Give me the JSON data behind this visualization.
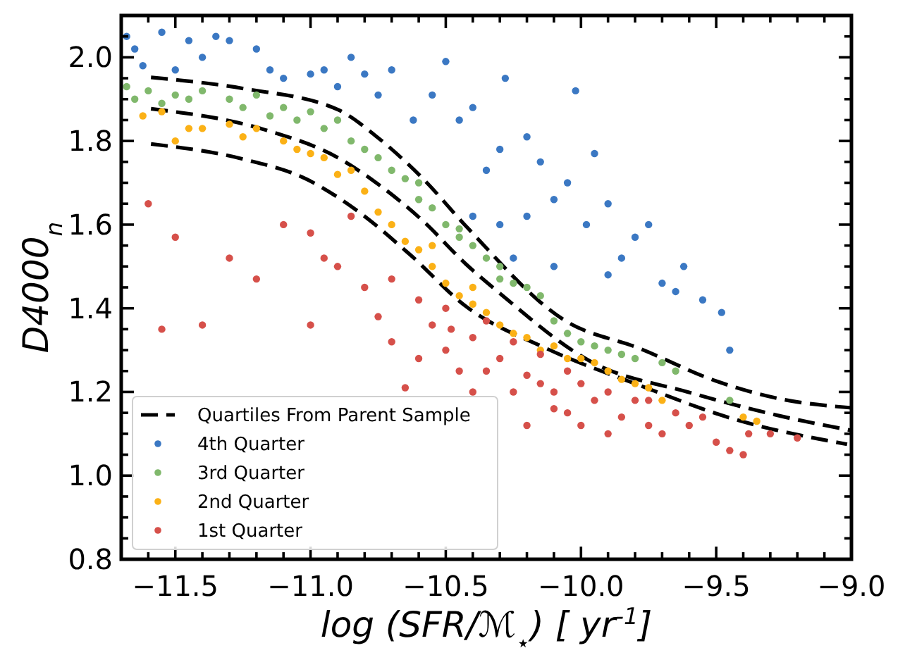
{
  "chart_data": {
    "type": "scatter",
    "xlabel": "log (SFR/ℳ$_{⋆}$)  [ yr$^{-1}$]",
    "ylabel": "D4000$_{n}$",
    "xlim": [
      -11.7,
      -9.0
    ],
    "ylim": [
      0.8,
      2.1
    ],
    "xticks": [
      {
        "value": -11.6,
        "label": null
      },
      {
        "value": -11.5,
        "label": "−11.5"
      },
      {
        "value": -11.4,
        "label": null
      },
      {
        "value": -11.3,
        "label": null
      },
      {
        "value": -11.2,
        "label": null
      },
      {
        "value": -11.1,
        "label": null
      },
      {
        "value": -11.0,
        "label": "−11.0"
      },
      {
        "value": -10.9,
        "label": null
      },
      {
        "value": -10.8,
        "label": null
      },
      {
        "value": -10.7,
        "label": null
      },
      {
        "value": -10.6,
        "label": null
      },
      {
        "value": -10.5,
        "label": "−10.5"
      },
      {
        "value": -10.4,
        "label": null
      },
      {
        "value": -10.3,
        "label": null
      },
      {
        "value": -10.2,
        "label": null
      },
      {
        "value": -10.1,
        "label": null
      },
      {
        "value": -10.0,
        "label": "−10.0"
      },
      {
        "value": -9.9,
        "label": null
      },
      {
        "value": -9.8,
        "label": null
      },
      {
        "value": -9.7,
        "label": null
      },
      {
        "value": -9.6,
        "label": null
      },
      {
        "value": -9.5,
        "label": "−9.5"
      },
      {
        "value": -9.4,
        "label": null
      },
      {
        "value": -9.3,
        "label": null
      },
      {
        "value": -9.2,
        "label": null
      },
      {
        "value": -9.1,
        "label": null
      },
      {
        "value": -9.0,
        "label": "−9.0"
      }
    ],
    "yticks": [
      {
        "value": 0.8,
        "label": "0.8"
      },
      {
        "value": 0.85,
        "label": null
      },
      {
        "value": 0.9,
        "label": null
      },
      {
        "value": 0.95,
        "label": null
      },
      {
        "value": 1.0,
        "label": "1.0"
      },
      {
        "value": 1.05,
        "label": null
      },
      {
        "value": 1.1,
        "label": null
      },
      {
        "value": 1.15,
        "label": null
      },
      {
        "value": 1.2,
        "label": "1.2"
      },
      {
        "value": 1.25,
        "label": null
      },
      {
        "value": 1.3,
        "label": null
      },
      {
        "value": 1.35,
        "label": null
      },
      {
        "value": 1.4,
        "label": "1.4"
      },
      {
        "value": 1.45,
        "label": null
      },
      {
        "value": 1.5,
        "label": null
      },
      {
        "value": 1.55,
        "label": null
      },
      {
        "value": 1.6,
        "label": "1.6"
      },
      {
        "value": 1.65,
        "label": null
      },
      {
        "value": 1.7,
        "label": null
      },
      {
        "value": 1.75,
        "label": null
      },
      {
        "value": 1.8,
        "label": "1.8"
      },
      {
        "value": 1.85,
        "label": null
      },
      {
        "value": 1.9,
        "label": null
      },
      {
        "value": 1.95,
        "label": null
      },
      {
        "value": 2.0,
        "label": "2.0"
      },
      {
        "value": 2.05,
        "label": null
      }
    ],
    "legend": "bottom left",
    "grid": false,
    "marker": "circle",
    "series": [
      {
        "name": "Quartiles From Parent Sample",
        "type": "line",
        "line_style": "dashed",
        "marker": "none",
        "color": "#000000",
        "x": [
          -11.59,
          -11.245,
          -10.896,
          -10.755,
          -10.583,
          -10.426,
          -10.06,
          -9.783,
          -9.5,
          -9.26,
          -9.0
        ],
        "values": [
          1.952,
          1.925,
          1.874,
          1.81,
          1.709,
          1.597,
          1.371,
          1.304,
          1.226,
          1.183,
          1.162
        ]
      },
      {
        "type": "line",
        "line_style": "dashed",
        "marker": "none",
        "color": "#000000",
        "x": [
          -11.59,
          -11.17,
          -10.896,
          -10.755,
          -10.583,
          -10.426,
          -10.306,
          -9.956,
          -9.606,
          -9.26,
          -9.0
        ],
        "values": [
          1.877,
          1.827,
          1.759,
          1.699,
          1.608,
          1.506,
          1.439,
          1.27,
          1.2,
          1.142,
          1.108
        ]
      },
      {
        "type": "line",
        "line_style": "dashed",
        "marker": "none",
        "color": "#000000",
        "x": [
          -11.59,
          -11.245,
          -11.016,
          -10.844,
          -10.635,
          -10.426,
          -10.128,
          -9.784,
          -9.434,
          -9.016
        ],
        "values": [
          1.793,
          1.756,
          1.709,
          1.641,
          1.53,
          1.405,
          1.304,
          1.216,
          1.135,
          1.075
        ]
      },
      {
        "name": "4th Quarter",
        "color": "#3b78c3",
        "x": [
          -11.68,
          -11.65,
          -11.62,
          -11.55,
          -11.5,
          -11.45,
          -11.4,
          -11.35,
          -11.3,
          -11.2,
          -11.15,
          -11.1,
          -11.0,
          -10.95,
          -10.9,
          -10.85,
          -10.8,
          -10.75,
          -10.7,
          -10.62,
          -10.55,
          -10.5,
          -10.45,
          -10.4,
          -10.35,
          -10.3,
          -10.28,
          -10.2,
          -10.15,
          -10.1,
          -10.05,
          -10.02,
          -9.98,
          -9.95,
          -9.9,
          -9.85,
          -9.8,
          -9.75,
          -9.7,
          -9.65,
          -9.62,
          -9.55,
          -9.48,
          -9.45,
          -10.25,
          -10.1,
          -10.2,
          -9.9,
          -10.4,
          -10.3
        ],
        "values": [
          2.05,
          2.02,
          1.98,
          2.06,
          1.97,
          2.04,
          2.0,
          2.05,
          2.04,
          2.02,
          1.97,
          1.95,
          1.96,
          1.97,
          1.93,
          2.0,
          1.96,
          1.91,
          1.97,
          1.85,
          1.91,
          1.99,
          1.85,
          1.88,
          1.73,
          1.78,
          1.95,
          1.81,
          1.75,
          1.66,
          1.7,
          1.92,
          1.6,
          1.77,
          1.65,
          1.52,
          1.57,
          1.6,
          1.46,
          1.44,
          1.5,
          1.42,
          1.39,
          1.3,
          1.52,
          1.5,
          1.62,
          1.48,
          1.62,
          1.6
        ]
      },
      {
        "name": "3rd Quarter",
        "color": "#80b86c",
        "x": [
          -11.68,
          -11.65,
          -11.6,
          -11.55,
          -11.5,
          -11.45,
          -11.4,
          -11.3,
          -11.25,
          -11.2,
          -11.15,
          -11.1,
          -11.05,
          -11.0,
          -10.95,
          -10.9,
          -10.85,
          -10.8,
          -10.75,
          -10.7,
          -10.65,
          -10.6,
          -10.55,
          -10.5,
          -10.45,
          -10.4,
          -10.35,
          -10.3,
          -10.25,
          -10.2,
          -10.15,
          -10.1,
          -10.05,
          -10.0,
          -9.95,
          -9.9,
          -9.85,
          -9.8,
          -9.7,
          -9.65,
          -9.45,
          -10.6,
          -10.45,
          -10.3
        ],
        "values": [
          1.93,
          1.9,
          1.92,
          1.89,
          1.91,
          1.9,
          1.92,
          1.9,
          1.88,
          1.91,
          1.86,
          1.88,
          1.85,
          1.87,
          1.83,
          1.85,
          1.8,
          1.78,
          1.76,
          1.73,
          1.71,
          1.66,
          1.64,
          1.6,
          1.59,
          1.55,
          1.52,
          1.5,
          1.46,
          1.45,
          1.43,
          1.37,
          1.34,
          1.32,
          1.31,
          1.3,
          1.29,
          1.28,
          1.27,
          1.25,
          1.18,
          1.7,
          1.57,
          1.47
        ]
      },
      {
        "name": "2nd Quarter",
        "color": "#fbb116",
        "x": [
          -11.62,
          -11.55,
          -11.5,
          -11.45,
          -11.4,
          -11.3,
          -11.25,
          -11.2,
          -11.1,
          -11.05,
          -11.0,
          -10.95,
          -10.9,
          -10.85,
          -10.8,
          -10.75,
          -10.7,
          -10.65,
          -10.6,
          -10.55,
          -10.5,
          -10.45,
          -10.4,
          -10.35,
          -10.3,
          -10.25,
          -10.2,
          -10.15,
          -10.1,
          -10.05,
          -10.0,
          -9.95,
          -9.9,
          -9.85,
          -9.8,
          -9.75,
          -9.7,
          -9.4,
          -9.35,
          -10.55,
          -10.4
        ],
        "values": [
          1.86,
          1.87,
          1.8,
          1.83,
          1.83,
          1.84,
          1.81,
          1.83,
          1.8,
          1.78,
          1.77,
          1.76,
          1.72,
          1.73,
          1.68,
          1.63,
          1.6,
          1.56,
          1.54,
          1.5,
          1.46,
          1.43,
          1.41,
          1.39,
          1.36,
          1.34,
          1.33,
          1.3,
          1.31,
          1.28,
          1.28,
          1.27,
          1.25,
          1.23,
          1.22,
          1.21,
          1.18,
          1.14,
          1.13,
          1.55,
          1.45
        ]
      },
      {
        "name": "1st Quarter",
        "color": "#d6504a",
        "x": [
          -11.6,
          -11.55,
          -11.4,
          -11.5,
          -11.3,
          -11.2,
          -11.1,
          -11.0,
          -11.0,
          -10.95,
          -10.9,
          -10.85,
          -10.8,
          -10.75,
          -10.7,
          -10.7,
          -10.65,
          -10.6,
          -10.55,
          -10.5,
          -10.5,
          -10.45,
          -10.4,
          -10.4,
          -10.35,
          -10.3,
          -10.25,
          -10.2,
          -10.2,
          -10.15,
          -10.1,
          -10.1,
          -10.05,
          -10.0,
          -10.0,
          -9.95,
          -9.9,
          -9.9,
          -9.85,
          -9.8,
          -9.75,
          -9.7,
          -9.65,
          -9.6,
          -9.55,
          -9.5,
          -9.45,
          -9.4,
          -9.38,
          -9.3,
          -9.2,
          -10.6,
          -10.35,
          -10.25,
          -10.05,
          -9.75,
          -10.48,
          -10.15
        ],
        "values": [
          1.65,
          1.35,
          1.36,
          1.57,
          1.52,
          1.47,
          1.6,
          1.36,
          1.58,
          1.52,
          1.5,
          1.62,
          1.45,
          1.38,
          1.32,
          1.47,
          1.21,
          1.42,
          1.36,
          1.3,
          1.4,
          1.25,
          1.33,
          1.2,
          1.37,
          1.28,
          1.32,
          1.24,
          1.12,
          1.29,
          1.2,
          1.16,
          1.25,
          1.22,
          1.12,
          1.18,
          1.2,
          1.1,
          1.14,
          1.18,
          1.12,
          1.1,
          1.15,
          1.12,
          1.14,
          1.08,
          1.06,
          1.05,
          1.1,
          1.1,
          1.09,
          1.28,
          1.25,
          1.2,
          1.15,
          1.18,
          1.35,
          1.22
        ]
      }
    ]
  }
}
